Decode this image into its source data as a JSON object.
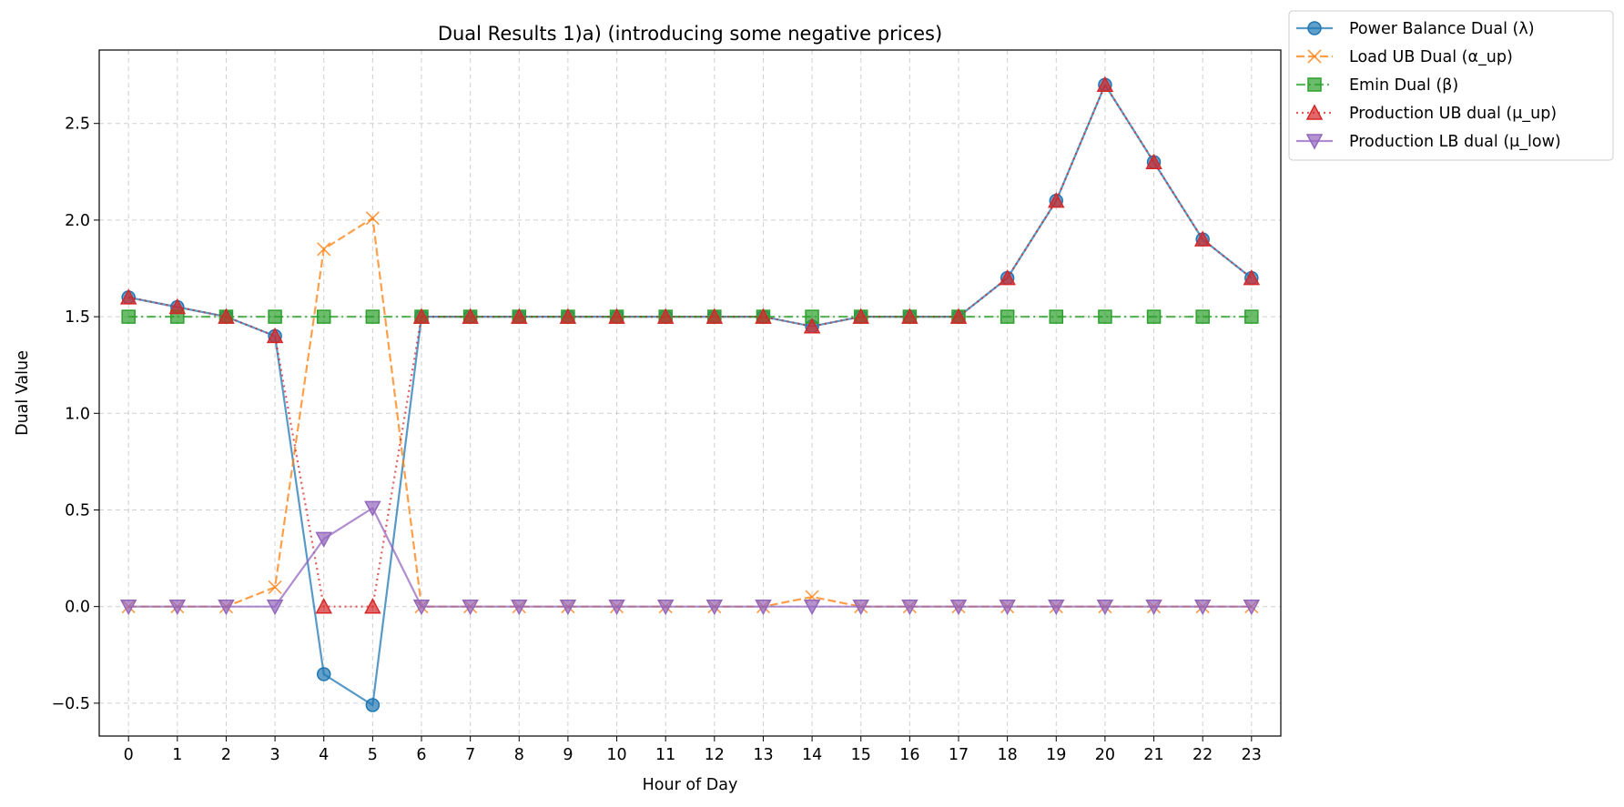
{
  "chart_data": {
    "type": "line",
    "title": "Dual Results 1)a) (introducing some negative prices)",
    "xlabel": "Hour of Day",
    "ylabel": "Dual Value",
    "x": [
      0,
      1,
      2,
      3,
      4,
      5,
      6,
      7,
      8,
      9,
      10,
      11,
      12,
      13,
      14,
      15,
      16,
      17,
      18,
      19,
      20,
      21,
      22,
      23
    ],
    "x_tick_labels": [
      "0",
      "1",
      "2",
      "3",
      "4",
      "5",
      "6",
      "7",
      "8",
      "9",
      "10",
      "11",
      "12",
      "13",
      "14",
      "15",
      "16",
      "17",
      "18",
      "19",
      "20",
      "21",
      "22",
      "23"
    ],
    "xlim": [
      -0.6,
      23.6
    ],
    "ylim": [
      -0.67,
      2.88
    ],
    "y_ticks": [
      -0.5,
      0.0,
      0.5,
      1.0,
      1.5,
      2.0,
      2.5
    ],
    "y_tick_labels": [
      "−0.5",
      "0.0",
      "0.5",
      "1.0",
      "1.5",
      "2.0",
      "2.5"
    ],
    "grid": true,
    "legend_position": "outside top-right",
    "series": [
      {
        "name": "Power Balance Dual (λ)",
        "color": "#1f77b4",
        "linestyle": "solid",
        "marker": "circle",
        "values": [
          1.6,
          1.55,
          1.5,
          1.4,
          -0.35,
          -0.51,
          1.5,
          1.5,
          1.5,
          1.5,
          1.5,
          1.5,
          1.5,
          1.5,
          1.45,
          1.5,
          1.5,
          1.5,
          1.7,
          2.1,
          2.7,
          2.3,
          1.9,
          1.7
        ]
      },
      {
        "name": "Load UB Dual (α_up)",
        "color": "#ff7f0e",
        "linestyle": "dashed",
        "marker": "x",
        "values": [
          0,
          0,
          0,
          0.1,
          1.85,
          2.01,
          0,
          0,
          0,
          0,
          0,
          0,
          0,
          0,
          0.05,
          0,
          0,
          0,
          0,
          0,
          0,
          0,
          0,
          0
        ]
      },
      {
        "name": "Emin Dual (β)",
        "color": "#2ca02c",
        "linestyle": "dashdot",
        "marker": "square",
        "values": [
          1.5,
          1.5,
          1.5,
          1.5,
          1.5,
          1.5,
          1.5,
          1.5,
          1.5,
          1.5,
          1.5,
          1.5,
          1.5,
          1.5,
          1.5,
          1.5,
          1.5,
          1.5,
          1.5,
          1.5,
          1.5,
          1.5,
          1.5,
          1.5
        ]
      },
      {
        "name": "Production UB dual (μ_up)",
        "color": "#d62728",
        "linestyle": "dotted",
        "marker": "triangle-up",
        "values": [
          1.6,
          1.55,
          1.5,
          1.4,
          0,
          0,
          1.5,
          1.5,
          1.5,
          1.5,
          1.5,
          1.5,
          1.5,
          1.5,
          1.45,
          1.5,
          1.5,
          1.5,
          1.7,
          2.1,
          2.7,
          2.3,
          1.9,
          1.7
        ]
      },
      {
        "name": "Production LB dual (μ_low)",
        "color": "#9467bd",
        "linestyle": "solid",
        "marker": "triangle-down",
        "values": [
          0,
          0,
          0,
          0,
          0.35,
          0.51,
          0,
          0,
          0,
          0,
          0,
          0,
          0,
          0,
          0,
          0,
          0,
          0,
          0,
          0,
          0,
          0,
          0,
          0
        ]
      }
    ]
  }
}
